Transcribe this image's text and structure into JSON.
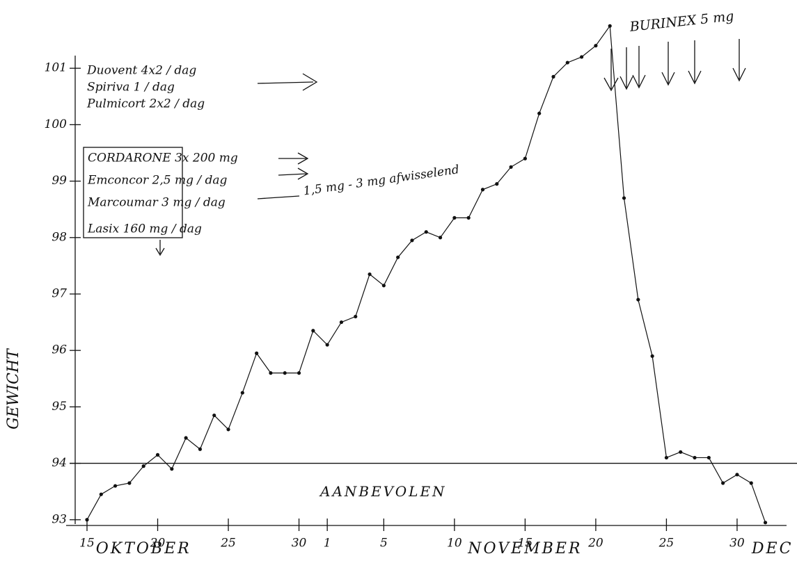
{
  "chart_data": {
    "type": "line",
    "y_label": "GEWICHT",
    "x": [
      0,
      1,
      2,
      3,
      4,
      5,
      6,
      7,
      8,
      9,
      10,
      11,
      12,
      13,
      14,
      15,
      16,
      17,
      18,
      19,
      20,
      21,
      22,
      23,
      24,
      25,
      26,
      27,
      28,
      29,
      30,
      31,
      32,
      33,
      34,
      35,
      36,
      37,
      38,
      39,
      40,
      41,
      42,
      43,
      44,
      45,
      46,
      47,
      48
    ],
    "series": [
      {
        "color": "#111111",
        "values": [
          93.0,
          93.45,
          93.6,
          93.65,
          93.95,
          94.15,
          93.9,
          94.45,
          94.25,
          94.85,
          94.6,
          95.25,
          95.95,
          95.6,
          95.6,
          95.6,
          96.35,
          96.1,
          96.5,
          96.6,
          97.35,
          97.15,
          97.65,
          97.95,
          98.1,
          98.0,
          98.35,
          98.35,
          98.85,
          98.95,
          99.25,
          99.4,
          100.2,
          100.85,
          101.1,
          101.2,
          101.4,
          101.75,
          98.7,
          96.9,
          95.9,
          94.1,
          94.2,
          94.1,
          94.1,
          93.65,
          93.8,
          93.65,
          92.95
        ]
      }
    ],
    "xlim": [
      0,
      49.5
    ],
    "ylim": [
      92.8,
      102
    ],
    "xticks": [
      {
        "value": 0,
        "label": "15"
      },
      {
        "value": 5,
        "label": "20"
      },
      {
        "value": 10,
        "label": "25"
      },
      {
        "value": 15,
        "label": "30"
      },
      {
        "value": 17,
        "label": "1"
      },
      {
        "value": 21,
        "label": "5"
      },
      {
        "value": 26,
        "label": "10"
      },
      {
        "value": 31,
        "label": "15"
      },
      {
        "value": 36,
        "label": "20"
      },
      {
        "value": 41,
        "label": "25"
      },
      {
        "value": 46,
        "label": "30"
      }
    ],
    "yticks": [
      93,
      94,
      95,
      96,
      97,
      98,
      99,
      100,
      101
    ],
    "months": [
      {
        "value": 4,
        "label": "OKTOBER"
      },
      {
        "value": 31,
        "label": "NOVEMBER"
      },
      {
        "value": 48.5,
        "label": "DEC"
      }
    ],
    "reference_line": {
      "value": 94,
      "label": "AANBEVOLEN"
    },
    "annotations": [
      "Duovent 4x2 / dag",
      "Spiriva 1 / dag",
      "Pulmicort 2x2 / dag",
      "CORDARONE 3x 200 mg",
      "Emconcor 2,5 mg / dag",
      "Marcoumar 3 mg / dag",
      "1,5 mg - 3 mg afwisselend",
      "Lasix 160 mg / dag",
      "BURINEX 5 mg"
    ]
  }
}
